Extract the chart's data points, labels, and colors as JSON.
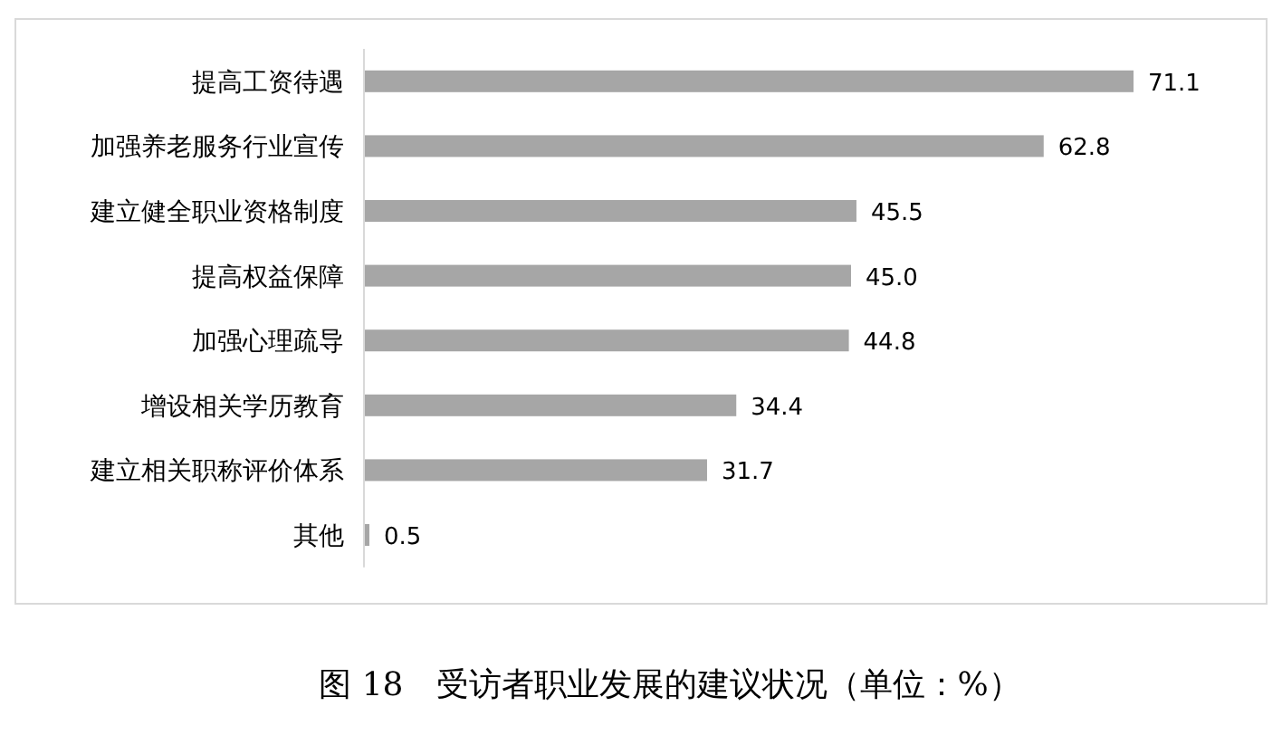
{
  "chart_data": {
    "type": "bar",
    "orientation": "horizontal",
    "title": "图 18　受访者职业发展的建议状况（单位：%）",
    "categories": [
      "提高工资待遇",
      "加强养老服务行业宣传",
      "建立健全职业资格制度",
      "提高权益保障",
      "加强心理疏导",
      "增设相关学历教育",
      "建立相关职称评价体系",
      "其他"
    ],
    "values": [
      71.1,
      62.8,
      45.5,
      45.0,
      44.8,
      34.4,
      31.7,
      0.5
    ],
    "value_labels": [
      "71.1",
      "62.8",
      "45.5",
      "45.0",
      "44.8",
      "34.4",
      "31.7",
      "0.5"
    ],
    "color": "#a6a6a6"
  }
}
